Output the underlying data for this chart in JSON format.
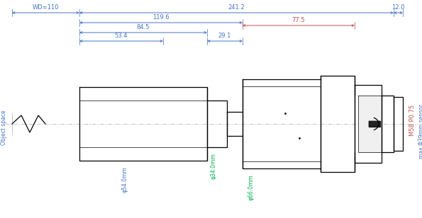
{
  "bg_color": "#ffffff",
  "lc": "#000000",
  "blue": "#4472c4",
  "orange": "#c0504d",
  "green": "#00b050",
  "gray": "#888888",
  "figsize": [
    5.95,
    3.08
  ],
  "dpi": 100,
  "note_phi54": "φ54.0mm",
  "note_phi34": "φ34.0mm",
  "note_phi66": "φ66.0mm",
  "note_wd": "WD=110",
  "note_241": "241.2",
  "note_12": "12.0",
  "note_1196": "119.6",
  "note_845": "84.5",
  "note_534": "53.4",
  "note_291": "29.1",
  "note_775": "77.5",
  "note_M58": "M58 P0.75",
  "note_sensor": "max Φ39mm sensor",
  "note_obj": "Object space"
}
